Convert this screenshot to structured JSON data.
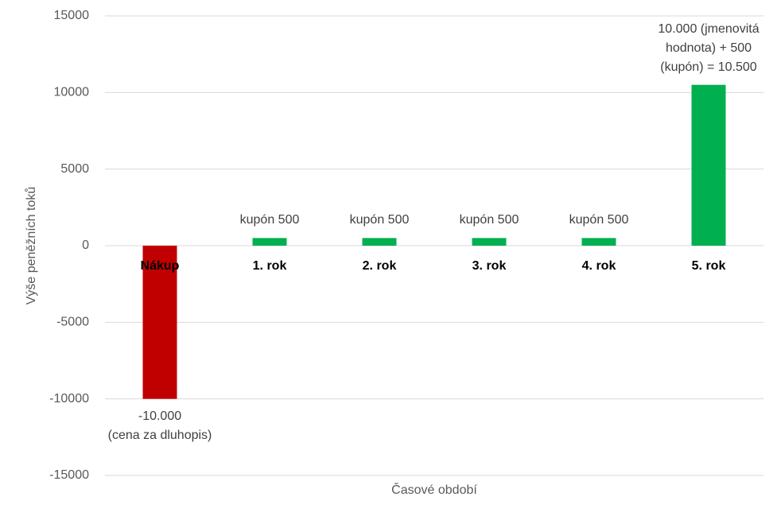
{
  "chart_data": {
    "type": "bar",
    "x_label": "Časové období",
    "y_label": "Výše peněžních toků",
    "categories": [
      "Nákup",
      "1. rok",
      "2. rok",
      "3. rok",
      "4. rok",
      "5. rok"
    ],
    "values": [
      -10000,
      500,
      500,
      500,
      500,
      10500
    ],
    "value_labels": [
      "-10.000\n(cena za dluhopis)",
      "kupón 500",
      "kupón 500",
      "kupón 500",
      "kupón 500",
      "10.000 (jmenovitá\nhodnota) + 500\n(kupón) = 10.500"
    ],
    "colors": [
      "#c00000",
      "#00b050",
      "#00b050",
      "#00b050",
      "#00b050",
      "#00b050"
    ],
    "ylim": [
      -15000,
      15000
    ],
    "yticks": [
      -15000,
      -10000,
      -5000,
      0,
      5000,
      10000,
      15000
    ],
    "grid": true
  }
}
